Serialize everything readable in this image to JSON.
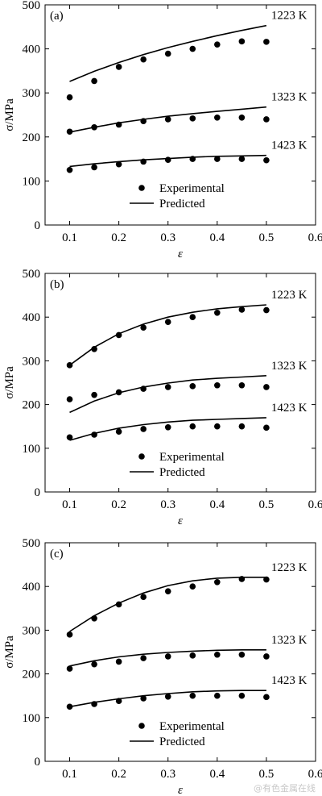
{
  "figure": {
    "watermark": "@有色金属在线"
  },
  "chart_data": [
    {
      "type": "line",
      "panel_label": "(a)",
      "xlabel": "ε",
      "ylabel": "σ/MPa",
      "xlim": [
        0.05,
        0.6
      ],
      "ylim": [
        0,
        500
      ],
      "xticks": [
        "0.1",
        "0.2",
        "0.3",
        "0.4",
        "0.5",
        "0.6"
      ],
      "yticks": [
        "0",
        "100",
        "200",
        "300",
        "400",
        "500"
      ],
      "legend": {
        "experimental": "Experimental",
        "predicted": "Predicted"
      },
      "x": [
        0.1,
        0.15,
        0.2,
        0.25,
        0.3,
        0.35,
        0.4,
        0.45,
        0.5
      ],
      "series": [
        {
          "name": "1223 K",
          "experimental": [
            290,
            327,
            359,
            376,
            389,
            400,
            410,
            417,
            416
          ],
          "predicted": [
            326,
            349,
            369,
            387,
            403,
            417,
            430,
            442,
            453
          ]
        },
        {
          "name": "1323 K",
          "experimental": [
            212,
            222,
            228,
            236,
            240,
            242,
            244,
            244,
            240
          ],
          "predicted": [
            211,
            222,
            232,
            240,
            247,
            253,
            258,
            263,
            268
          ]
        },
        {
          "name": "1423 K",
          "experimental": [
            125,
            131,
            138,
            144,
            148,
            150,
            150,
            150,
            147
          ],
          "predicted": [
            133,
            139,
            144,
            148,
            151,
            154,
            156,
            157,
            158
          ]
        }
      ]
    },
    {
      "type": "line",
      "panel_label": "(b)",
      "xlabel": "ε",
      "ylabel": "σ/MPa",
      "xlim": [
        0.05,
        0.6
      ],
      "ylim": [
        0,
        500
      ],
      "xticks": [
        "0.1",
        "0.2",
        "0.3",
        "0.4",
        "0.5",
        "0.6"
      ],
      "yticks": [
        "0",
        "100",
        "200",
        "300",
        "400",
        "500"
      ],
      "legend": {
        "experimental": "Experimental",
        "predicted": "Predicted"
      },
      "x": [
        0.1,
        0.15,
        0.2,
        0.25,
        0.3,
        0.35,
        0.4,
        0.45,
        0.5
      ],
      "series": [
        {
          "name": "1223 K",
          "experimental": [
            290,
            327,
            359,
            376,
            389,
            400,
            410,
            417,
            416
          ],
          "predicted": [
            290,
            331,
            362,
            384,
            400,
            411,
            419,
            424,
            428
          ]
        },
        {
          "name": "1323 K",
          "experimental": [
            212,
            222,
            228,
            236,
            240,
            242,
            244,
            244,
            240
          ],
          "predicted": [
            182,
            208,
            227,
            240,
            249,
            256,
            260,
            263,
            266
          ]
        },
        {
          "name": "1423 K",
          "experimental": [
            125,
            131,
            138,
            144,
            148,
            150,
            150,
            150,
            147
          ],
          "predicted": [
            118,
            134,
            146,
            154,
            160,
            164,
            166,
            168,
            170
          ]
        }
      ]
    },
    {
      "type": "line",
      "panel_label": "(c)",
      "xlabel": "ε",
      "ylabel": "σ/MPa",
      "xlim": [
        0.05,
        0.6
      ],
      "ylim": [
        0,
        500
      ],
      "xticks": [
        "0.1",
        "0.2",
        "0.3",
        "0.4",
        "0.5",
        "0.6"
      ],
      "yticks": [
        "0",
        "100",
        "200",
        "300",
        "400",
        "500"
      ],
      "legend": {
        "experimental": "Experimental",
        "predicted": "Predicted"
      },
      "x": [
        0.1,
        0.15,
        0.2,
        0.25,
        0.3,
        0.35,
        0.4,
        0.45,
        0.5
      ],
      "series": [
        {
          "name": "1223 K",
          "experimental": [
            290,
            327,
            359,
            376,
            389,
            400,
            410,
            417,
            416
          ],
          "predicted": [
            297,
            333,
            362,
            385,
            402,
            413,
            419,
            421,
            421
          ]
        },
        {
          "name": "1323 K",
          "experimental": [
            212,
            222,
            228,
            236,
            240,
            242,
            244,
            244,
            240
          ],
          "predicted": [
            218,
            230,
            239,
            245,
            249,
            252,
            254,
            255,
            255
          ]
        },
        {
          "name": "1423 K",
          "experimental": [
            125,
            131,
            138,
            144,
            148,
            150,
            150,
            150,
            147
          ],
          "predicted": [
            125,
            135,
            143,
            150,
            155,
            159,
            161,
            162,
            162
          ]
        }
      ]
    }
  ]
}
